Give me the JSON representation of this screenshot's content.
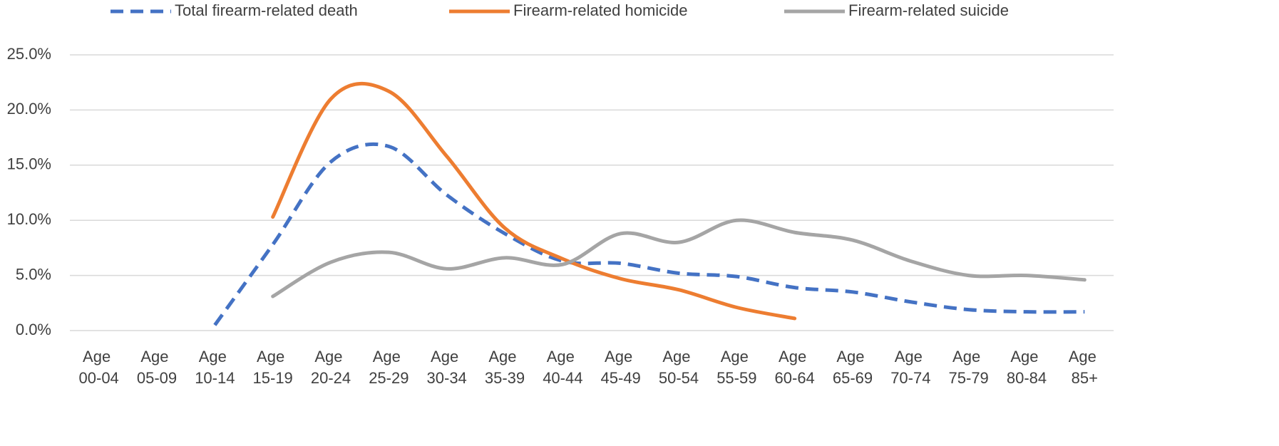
{
  "chart_data": {
    "type": "line",
    "categories": [
      "Age 00-04",
      "Age 05-09",
      "Age 10-14",
      "Age 15-19",
      "Age 20-24",
      "Age 25-29",
      "Age 30-34",
      "Age 35-39",
      "Age 40-44",
      "Age 45-49",
      "Age 50-54",
      "Age 55-59",
      "Age 60-64",
      "Age 65-69",
      "Age 70-74",
      "Age 75-79",
      "Age 80-84",
      "Age 85+"
    ],
    "series": [
      {
        "name": "Total firearm-related death",
        "color": "#4472c4",
        "dash": true,
        "values": [
          null,
          null,
          0.5,
          7.8,
          15.3,
          16.7,
          12.3,
          8.8,
          6.3,
          6.1,
          5.2,
          4.9,
          3.9,
          3.5,
          2.6,
          1.9,
          1.7,
          1.7
        ]
      },
      {
        "name": "Firearm-related homicide",
        "color": "#ed7d31",
        "dash": false,
        "values": [
          null,
          null,
          null,
          10.3,
          21.0,
          21.7,
          15.8,
          9.3,
          6.5,
          4.7,
          3.7,
          2.1,
          1.1,
          null,
          null,
          null,
          null,
          null
        ]
      },
      {
        "name": "Firearm-related suicide",
        "color": "#a5a5a5",
        "dash": false,
        "values": [
          null,
          null,
          null,
          3.1,
          6.2,
          7.1,
          5.6,
          6.6,
          6.0,
          8.8,
          8.0,
          10.0,
          8.9,
          8.2,
          6.3,
          5.0,
          5.0,
          4.6
        ]
      }
    ],
    "ylim": [
      0,
      25
    ],
    "yticks": [
      {
        "value": 0,
        "label": "0.0%"
      },
      {
        "value": 5,
        "label": "5.0%"
      },
      {
        "value": 10,
        "label": "10.0%"
      },
      {
        "value": 15,
        "label": "15.0%"
      },
      {
        "value": 20,
        "label": "20.0%"
      },
      {
        "value": 25,
        "label": "25.0%"
      }
    ],
    "grid": true,
    "smooth": true,
    "legend": "top"
  }
}
